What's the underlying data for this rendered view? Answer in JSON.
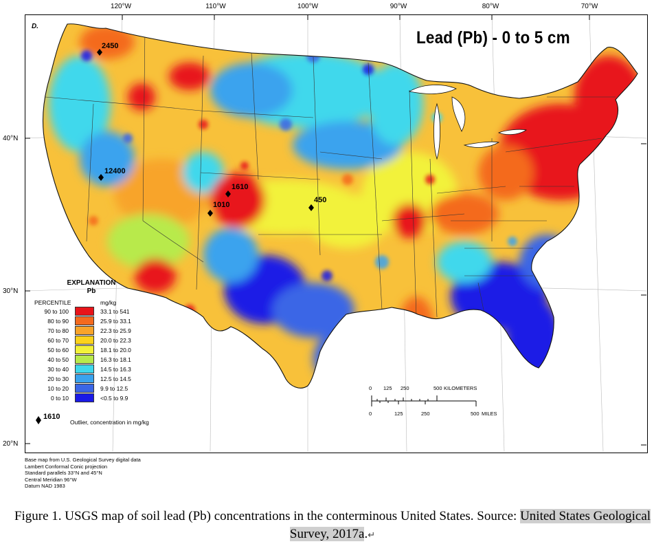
{
  "map": {
    "panel_letter": "D.",
    "title": "Lead (Pb) - 0 to 5 cm",
    "longitude_ticks": [
      "120°W",
      "110°W",
      "100°W",
      "90°W",
      "80°W",
      "70°W"
    ],
    "latitude_ticks": [
      "40°N",
      "30°N",
      "20°N"
    ],
    "outliers": [
      {
        "label": "2450"
      },
      {
        "label": "12400"
      },
      {
        "label": "1610"
      },
      {
        "label": "1010"
      },
      {
        "label": "450"
      }
    ]
  },
  "legend": {
    "title": "EXPLANATION",
    "subtitle": "Pb",
    "percentile_header": "PERCENTILE",
    "unit_header": "mg/kg",
    "classes": [
      {
        "percentile": "90 to 100",
        "range": "33.1 to 541",
        "color": "#e8141a"
      },
      {
        "percentile": "80 to 90",
        "range": "25.9 to 33.1",
        "color": "#f46a1e"
      },
      {
        "percentile": "70 to 80",
        "range": "22.3 to 25.9",
        "color": "#f8a42a"
      },
      {
        "percentile": "60 to 70",
        "range": "20.0 to 22.3",
        "color": "#fcd21c"
      },
      {
        "percentile": "50 to 60",
        "range": "18.1 to 20.0",
        "color": "#f2f23a"
      },
      {
        "percentile": "40 to 50",
        "range": "16.3 to 18.1",
        "color": "#b8ea4c"
      },
      {
        "percentile": "30 to 40",
        "range": "14.5 to 16.3",
        "color": "#3fd8ec"
      },
      {
        "percentile": "20 to 30",
        "range": "12.5 to 14.5",
        "color": "#3aa3ee"
      },
      {
        "percentile": "10 to 20",
        "range": "9.9 to 12.5",
        "color": "#3a66e6"
      },
      {
        "percentile": "0 to 10",
        "range": "<0.5 to 9.9",
        "color": "#1a1ae6"
      }
    ],
    "outlier_key_value": "1610",
    "outlier_key_text": "Outlier, concentration in mg/kg"
  },
  "scale_bar": {
    "km_ticks": [
      "0",
      "125",
      "250",
      "500"
    ],
    "km_unit": "KILOMETERS",
    "mi_ticks": [
      "0",
      "125",
      "250",
      "500"
    ],
    "mi_unit": "MILES"
  },
  "base_map_notes": [
    "Base map from U.S. Geological Survey digital data",
    "Lambert Conformal Conic projection",
    "Standard parallels 33°N and 45°N",
    "Central Meridian 96°W",
    "Datum NAD 1983"
  ],
  "caption": {
    "text": "Figure 1. USGS map of soil lead (Pb) concentrations in the conterminous United States. Source: ",
    "source_link": "United States Geological Survey, 2017a",
    "end": ".",
    "pilcrow": "↵"
  }
}
